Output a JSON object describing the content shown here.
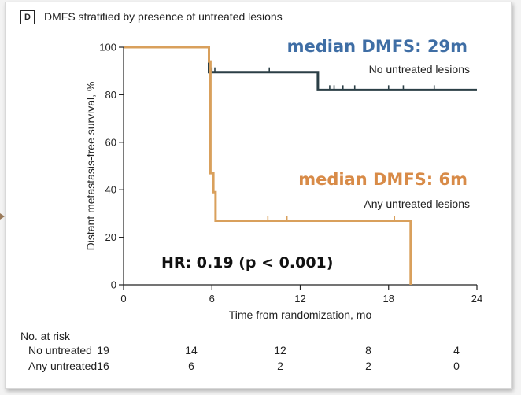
{
  "panel": {
    "letter": "D",
    "title": "DMFS stratified by presence of untreated lesions"
  },
  "annotations": {
    "median_top": "median DMFS: 29m",
    "median_bottom": "median DMFS: 6m",
    "group_top": "No untreated lesions",
    "group_bottom": "Any untreated lesions",
    "hr": "HR: 0.19 (p < 0.001)"
  },
  "colors": {
    "no_untreated": "#2b3f46",
    "any_untreated": "#d9a05c",
    "median_top_text": "#3f6ea5",
    "median_bottom_text": "#d88b48"
  },
  "chart_data": {
    "type": "line",
    "step": true,
    "xlabel": "Time from randomization, mo",
    "ylabel": "Distant metastasis-free survival, %",
    "xlim": [
      0,
      24
    ],
    "ylim": [
      0,
      100
    ],
    "xticks": [
      0,
      6,
      12,
      18,
      24
    ],
    "yticks": [
      0,
      20,
      40,
      60,
      80,
      100
    ],
    "series": [
      {
        "name": "No untreated lesions",
        "points": [
          [
            0,
            100
          ],
          [
            5.8,
            100
          ],
          [
            5.8,
            89.5
          ],
          [
            13.2,
            89.5
          ],
          [
            13.2,
            82
          ],
          [
            24,
            82
          ]
        ],
        "censor_ticks": [
          [
            6.0,
            89.5
          ],
          [
            6.2,
            89.5
          ],
          [
            9.9,
            89.5
          ],
          [
            14.0,
            82
          ],
          [
            14.3,
            82
          ],
          [
            14.9,
            82
          ],
          [
            15.7,
            82
          ],
          [
            18.0,
            82
          ],
          [
            19.0,
            82
          ],
          [
            21.1,
            82
          ]
        ]
      },
      {
        "name": "Any untreated lesions",
        "points": [
          [
            0,
            100
          ],
          [
            5.8,
            100
          ],
          [
            5.8,
            94
          ],
          [
            5.9,
            94
          ],
          [
            5.9,
            47
          ],
          [
            6.1,
            47
          ],
          [
            6.1,
            39
          ],
          [
            6.25,
            39
          ],
          [
            6.25,
            27
          ],
          [
            19.5,
            27
          ],
          [
            19.5,
            0
          ]
        ],
        "censor_ticks": [
          [
            9.8,
            27
          ],
          [
            11.1,
            27
          ],
          [
            18.4,
            27
          ]
        ]
      }
    ]
  },
  "risk_table": {
    "title": "No. at risk",
    "times": [
      0,
      6,
      12,
      18,
      24
    ],
    "rows": [
      {
        "label": "No untreated",
        "values": [
          "19",
          "14",
          "12",
          "8",
          "4"
        ]
      },
      {
        "label": "Any untreated",
        "values": [
          "16",
          "6",
          "2",
          "2",
          "0"
        ]
      }
    ]
  }
}
